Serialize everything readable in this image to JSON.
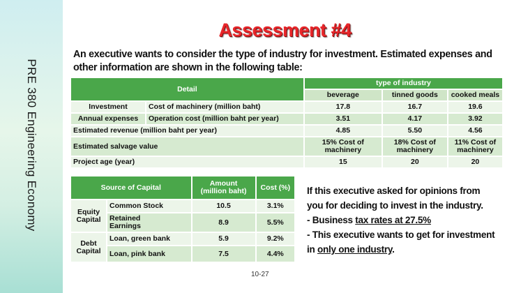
{
  "sidebar": {
    "text": "PRE 380 Engineering  Economy"
  },
  "title": "Assessment #4",
  "intro": "An executive wants to consider the type of industry for investment. Estimated expenses and other information are shown in the following table:",
  "table1": {
    "detail_header": "Detail",
    "type_header": "type of industry",
    "industries": [
      "beverage",
      "tinned goods",
      "cooked meals"
    ],
    "investment": {
      "group": "Investment",
      "label": "Cost of machinery (million baht)",
      "values": [
        "17.8",
        "16.7",
        "19.6"
      ]
    },
    "annual": {
      "group": "Annual expenses",
      "label": "Operation cost (million baht per year)",
      "values": [
        "3.51",
        "4.17",
        "3.92"
      ]
    },
    "revenue": {
      "label": "Estimated revenue (million baht per year)",
      "values": [
        "4.85",
        "5.50",
        "4.56"
      ]
    },
    "salvage": {
      "label": "Estimated salvage value",
      "values": [
        {
          "line1": "15% Cost of",
          "line2": "machinery"
        },
        {
          "line1": "18% Cost of",
          "line2": "machinery"
        },
        {
          "line1": "11% Cost of",
          "line2": "machinery"
        }
      ]
    },
    "age": {
      "label": "Project age (year)",
      "values": [
        "15",
        "20",
        "20"
      ]
    }
  },
  "table2": {
    "headers": {
      "source": "Source of Capital",
      "amount_line1": "Amount",
      "amount_line2": "(million baht)",
      "cost": "Cost (%)"
    },
    "equity": {
      "line1": "Equity",
      "line2": "Capital"
    },
    "debt": {
      "line1": "Debt",
      "line2": "Capital"
    },
    "rows": [
      {
        "label": "Common Stock",
        "amount": "10.5",
        "cost": "3.1%"
      },
      {
        "label_line1": "Retained",
        "label_line2": "Earnings",
        "amount": "8.9",
        "cost": "5.5%"
      },
      {
        "label": "Loan, green bank",
        "amount": "5.9",
        "cost": "9.2%"
      },
      {
        "label": "Loan, pink bank",
        "amount": "7.5",
        "cost": "4.4%"
      }
    ]
  },
  "opinion": {
    "line1": "If this executive asked for opinions from",
    "line2": "you for deciding to invest in the industry.",
    "line3_pre": "- Business ",
    "line3_u": "tax rates at 27.5%",
    "line4": "- This executive wants to get for investment",
    "line5_pre": "in ",
    "line5_u": "only one industry",
    "line5_post": "."
  },
  "page_number": "10-27"
}
